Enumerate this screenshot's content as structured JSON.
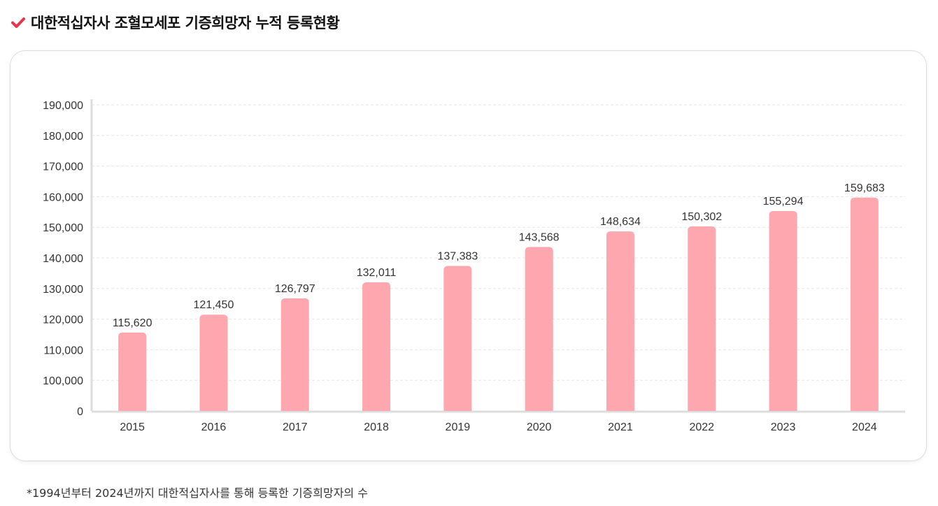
{
  "heading": {
    "title": "대한적십자사 조혈모세포 기증희망자 누적 등록현황",
    "icon": "check-icon",
    "icon_color": "#e8334a"
  },
  "colors": {
    "bar": "#ffa7ae",
    "grid": "#e6e6e6",
    "axis": "#dddddd"
  },
  "chart_data": {
    "type": "bar",
    "title": "대한적십자사 조혈모세포 기증희망자 누적 등록현황",
    "xlabel": "",
    "ylabel": "",
    "categories": [
      "2015",
      "2016",
      "2017",
      "2018",
      "2019",
      "2020",
      "2021",
      "2022",
      "2023",
      "2024"
    ],
    "values": [
      115620,
      121450,
      126797,
      132011,
      137383,
      143568,
      148634,
      150302,
      155294,
      159683
    ],
    "value_labels": [
      "115,620",
      "121,450",
      "126,797",
      "132,011",
      "137,383",
      "143,568",
      "148,634",
      "150,302",
      "155,294",
      "159,683"
    ],
    "y_ticks": [
      "0",
      "100,000",
      "110,000",
      "120,000",
      "130,000",
      "140,000",
      "150,000",
      "160,000",
      "170,000",
      "180,000",
      "190,000"
    ],
    "y_tick_values": [
      0,
      100000,
      110000,
      120000,
      130000,
      140000,
      150000,
      160000,
      170000,
      180000,
      190000
    ],
    "ylim": [
      0,
      190000
    ],
    "axis_break": "y-axis is broken between 0 and 100,000",
    "grid": true,
    "legend": "none"
  },
  "footnote": "*1994년부터 2024년까지 대한적십자사를 통해 등록한 기증희망자의 수"
}
